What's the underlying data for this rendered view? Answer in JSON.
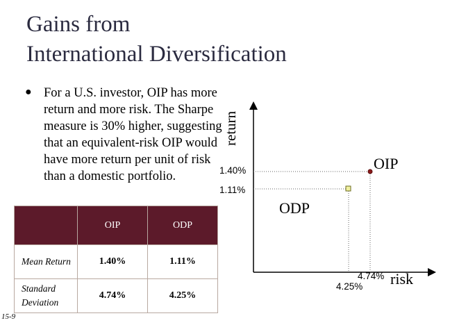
{
  "title": {
    "line1": "Gains from",
    "line2": "International Diversification"
  },
  "bullet": {
    "marker": "l",
    "text": "For a U.S. investor, OIP has more return and more risk. The Sharpe measure is 30% higher, suggesting that an equivalent-risk OIP would have more return per unit of risk than a domestic portfolio."
  },
  "table": {
    "headers": [
      "",
      "OIP",
      "ODP"
    ],
    "rows": [
      {
        "label": "Mean Return",
        "oip": "1.40%",
        "odp": "1.11%"
      },
      {
        "label": "Standard Deviation",
        "oip": "4.74%",
        "odp": "4.25%"
      }
    ]
  },
  "chart": {
    "ylabel": "return",
    "xlabel": "risk",
    "y_tick_oip": "1.40%",
    "y_tick_odp": "1.11%",
    "x_tick_oip": "4.74%",
    "x_tick_odp": "4.25%",
    "point_oip_label": "OIP",
    "point_odp_label": "ODP",
    "colors": {
      "oip_point": "#8b1a1a",
      "odp_point": "#f0f0a0",
      "header_bg": "#5c1a2a"
    }
  },
  "chart_data": {
    "type": "scatter",
    "xlabel": "risk",
    "ylabel": "return",
    "series": [
      {
        "name": "OIP",
        "x": [
          4.74
        ],
        "y": [
          1.4
        ]
      },
      {
        "name": "ODP",
        "x": [
          4.25
        ],
        "y": [
          1.11
        ]
      }
    ]
  },
  "footer": "15-9"
}
